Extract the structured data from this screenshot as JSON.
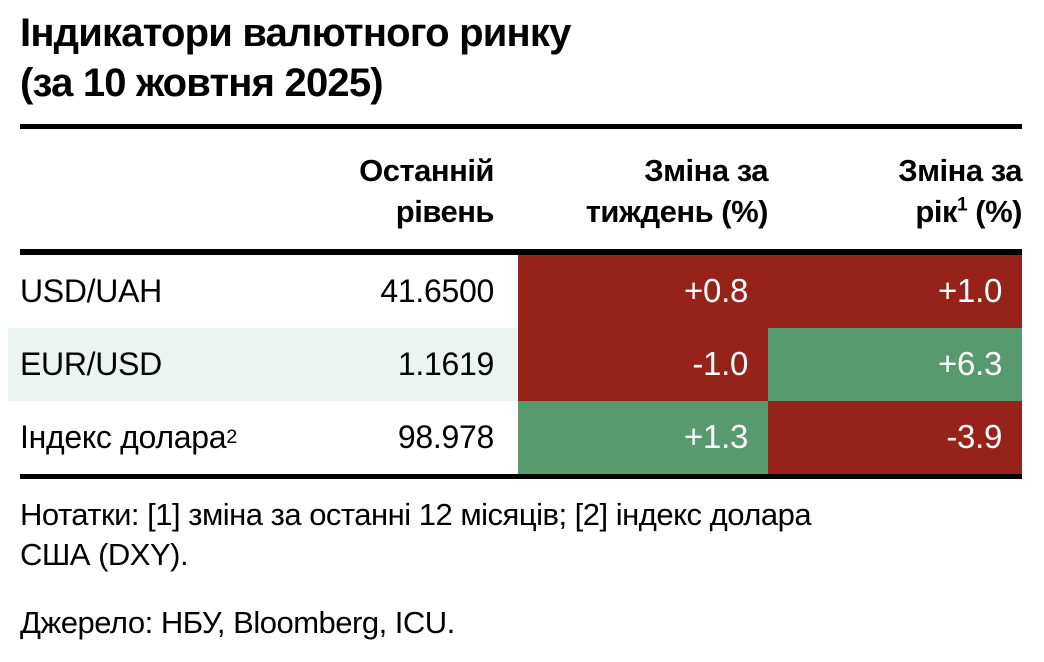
{
  "title": {
    "line1": "Індикатори валютного ринку",
    "line2": "(за 10 жовтня 2025)"
  },
  "table": {
    "columns": {
      "level_line1": "Останній",
      "level_line2": "рівень",
      "week_line1": "Зміна за",
      "week_line2": "тиждень (%)",
      "year_line1": "Зміна за",
      "year_line2_pre": "рік",
      "year_line2_sup": "1",
      "year_line2_post": " (%)"
    },
    "rows": [
      {
        "label": "USD/UAH",
        "label_sup": "",
        "level": "41.6500",
        "week": "+0.8",
        "week_color": "red",
        "year": "+1.0",
        "year_color": "red",
        "stripe": false
      },
      {
        "label": "EUR/USD",
        "label_sup": "",
        "level": "1.1619",
        "week": "-1.0",
        "week_color": "red",
        "year": "+6.3",
        "year_color": "green",
        "stripe": true
      },
      {
        "label": "Індекс долара",
        "label_sup": "2",
        "level": "98.978",
        "week": "+1.3",
        "week_color": "green",
        "year": "-3.9",
        "year_color": "red",
        "stripe": false
      }
    ]
  },
  "notes": "Нотатки: [1] зміна за останні 12 місяців; [2] індекс долара США (DXY).",
  "source": "Джерело: НБУ, Bloomberg, ICU.",
  "colors": {
    "red": "#96221a",
    "green": "#569a6e",
    "stripe": "#ecf4f1"
  }
}
